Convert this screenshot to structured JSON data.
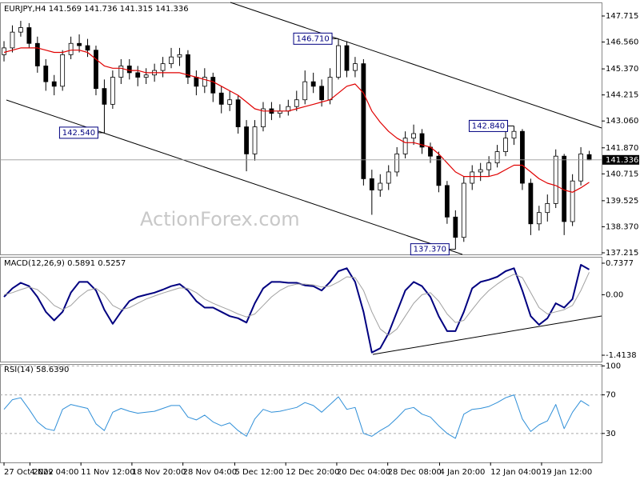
{
  "chart_data": [
    {
      "type": "candlestick",
      "title": "EURJPY,H4  141.569 141.736 141.315 141.336",
      "color": "#000000",
      "ohlc": [
        [
          146.0,
          146.6,
          145.7,
          146.3
        ],
        [
          146.3,
          147.3,
          146.1,
          147.0
        ],
        [
          147.0,
          147.5,
          146.8,
          147.2
        ],
        [
          147.2,
          147.4,
          146.3,
          146.5
        ],
        [
          146.5,
          146.8,
          145.2,
          145.5
        ],
        [
          145.5,
          145.8,
          144.4,
          144.8
        ],
        [
          144.8,
          145.1,
          144.2,
          144.6
        ],
        [
          144.6,
          146.2,
          144.4,
          146.0
        ],
        [
          146.0,
          146.8,
          145.8,
          146.5
        ],
        [
          146.5,
          146.9,
          146.1,
          146.4
        ],
        [
          146.4,
          146.7,
          145.9,
          146.2
        ],
        [
          146.2,
          146.4,
          144.2,
          144.5
        ],
        [
          144.5,
          144.9,
          142.54,
          143.8
        ],
        [
          143.8,
          145.3,
          143.6,
          145.0
        ],
        [
          145.0,
          145.8,
          144.7,
          145.5
        ],
        [
          145.5,
          145.8,
          144.9,
          145.2
        ],
        [
          145.2,
          145.5,
          144.6,
          145.0
        ],
        [
          145.0,
          145.4,
          144.7,
          145.1
        ],
        [
          145.1,
          145.6,
          144.8,
          145.3
        ],
        [
          145.3,
          145.9,
          145.0,
          145.6
        ],
        [
          145.6,
          146.3,
          145.4,
          145.9
        ],
        [
          145.9,
          146.3,
          145.5,
          146.0
        ],
        [
          146.0,
          146.2,
          144.7,
          145.0
        ],
        [
          145.0,
          145.3,
          144.2,
          144.6
        ],
        [
          144.6,
          145.4,
          144.3,
          145.0
        ],
        [
          145.0,
          145.2,
          143.9,
          144.3
        ],
        [
          144.3,
          144.6,
          143.4,
          143.8
        ],
        [
          143.8,
          144.4,
          143.5,
          144.0
        ],
        [
          144.0,
          144.2,
          142.5,
          142.8
        ],
        [
          142.8,
          143.1,
          140.83,
          141.6
        ],
        [
          141.6,
          143.1,
          141.3,
          142.8
        ],
        [
          142.8,
          143.9,
          142.6,
          143.6
        ],
        [
          143.6,
          143.9,
          143.1,
          143.4
        ],
        [
          143.4,
          143.8,
          143.2,
          143.5
        ],
        [
          143.5,
          144.0,
          143.3,
          143.7
        ],
        [
          143.7,
          144.4,
          143.5,
          144.0
        ],
        [
          144.0,
          145.3,
          143.8,
          144.8
        ],
        [
          144.8,
          145.2,
          144.3,
          144.6
        ],
        [
          144.6,
          144.9,
          143.7,
          144.0
        ],
        [
          144.0,
          145.4,
          143.8,
          145.0
        ],
        [
          145.0,
          146.71,
          144.9,
          146.4
        ],
        [
          146.4,
          146.6,
          145.0,
          145.3
        ],
        [
          145.3,
          145.9,
          145.0,
          145.6
        ],
        [
          145.6,
          145.8,
          140.2,
          140.5
        ],
        [
          140.5,
          140.9,
          138.9,
          140.0
        ],
        [
          140.0,
          140.7,
          139.7,
          140.3
        ],
        [
          140.3,
          141.1,
          140.0,
          140.8
        ],
        [
          140.8,
          141.9,
          140.6,
          141.6
        ],
        [
          141.6,
          142.6,
          141.4,
          142.3
        ],
        [
          142.3,
          142.9,
          142.0,
          142.5
        ],
        [
          142.5,
          142.7,
          141.6,
          141.9
        ],
        [
          141.9,
          142.1,
          141.2,
          141.5
        ],
        [
          141.5,
          141.7,
          139.9,
          140.2
        ],
        [
          140.2,
          140.4,
          138.5,
          138.8
        ],
        [
          138.8,
          139.1,
          137.37,
          137.9
        ],
        [
          137.9,
          140.6,
          137.7,
          140.3
        ],
        [
          140.3,
          141.1,
          140.0,
          140.8
        ],
        [
          140.8,
          141.2,
          140.4,
          140.9
        ],
        [
          140.9,
          141.5,
          140.6,
          141.2
        ],
        [
          141.2,
          142.0,
          141.0,
          141.7
        ],
        [
          141.7,
          142.6,
          141.5,
          142.3
        ],
        [
          142.3,
          142.84,
          142.0,
          142.6
        ],
        [
          142.6,
          142.7,
          140.0,
          140.3
        ],
        [
          140.3,
          140.5,
          138.0,
          138.5
        ],
        [
          138.5,
          139.3,
          138.2,
          139.0
        ],
        [
          139.0,
          139.8,
          138.6,
          139.4
        ],
        [
          139.4,
          141.8,
          139.2,
          141.5
        ],
        [
          141.5,
          141.6,
          138.0,
          138.6
        ],
        [
          138.6,
          140.7,
          138.4,
          140.4
        ],
        [
          140.4,
          141.9,
          140.2,
          141.6
        ],
        [
          141.569,
          141.736,
          141.315,
          141.336
        ]
      ],
      "overlay": {
        "color": "#e00000",
        "values": [
          146.1,
          146.2,
          146.3,
          146.3,
          146.3,
          146.2,
          146.1,
          146.1,
          146.2,
          146.2,
          146.1,
          145.8,
          145.5,
          145.4,
          145.4,
          145.3,
          145.3,
          145.2,
          145.2,
          145.2,
          145.2,
          145.2,
          145.1,
          145.0,
          144.9,
          144.8,
          144.6,
          144.4,
          144.2,
          143.9,
          143.6,
          143.5,
          143.5,
          143.5,
          143.5,
          143.6,
          143.7,
          143.8,
          143.9,
          144.0,
          144.3,
          144.6,
          144.7,
          144.3,
          143.5,
          143.0,
          142.6,
          142.3,
          142.1,
          142.1,
          142.0,
          141.9,
          141.6,
          141.2,
          140.8,
          140.6,
          140.6,
          140.6,
          140.6,
          140.7,
          140.9,
          141.1,
          141.1,
          140.8,
          140.5,
          140.3,
          140.2,
          140.0,
          139.9,
          140.1,
          140.34
        ]
      },
      "xlim": [
        -0.48,
        71.48
      ],
      "ylim": [
        137.144,
        148.318
      ],
      "yticks": [
        147.715,
        {
          "value": 146.56,
          "label": "146.560"
        },
        {
          "value": 145.37,
          "label": "145.370"
        },
        144.215,
        {
          "value": 143.06,
          "label": "143.060"
        },
        {
          "value": 141.87,
          "label": "141.870"
        },
        140.715,
        139.525,
        {
          "value": 138.37,
          "label": "138.370"
        },
        137.215
      ],
      "last_price": 141.336,
      "annotations": [
        {
          "value": 146.71,
          "label": "146.710",
          "x": 40
        },
        {
          "value": 142.54,
          "label": "142.540",
          "x": 12
        },
        {
          "value": 142.84,
          "label": "142.840",
          "x": 61
        },
        {
          "value": 137.37,
          "label": "137.370",
          "x": 54
        }
      ],
      "watermark": "ActionForex.com",
      "xticks": [
        {
          "value": 0,
          "label": "27 Oct 2022"
        },
        {
          "value": 3.1,
          "label": "4 Nov 04:00"
        },
        {
          "value": 9.2,
          "label": "11 Nov 12:00"
        },
        {
          "value": 15.3,
          "label": "18 Nov 20:00"
        },
        {
          "value": 21.4,
          "label": "28 Nov 04:00"
        },
        {
          "value": 27.6,
          "label": "5 Dec 12:00"
        },
        {
          "value": 33.7,
          "label": "12 Dec 20:00"
        },
        {
          "value": 39.8,
          "label": "20 Dec 04:00"
        },
        {
          "value": 45.9,
          "label": "28 Dec 08:00"
        },
        {
          "value": 52.1,
          "label": "4 Jan 20:00"
        },
        {
          "value": 58.2,
          "label": "12 Jan 04:00"
        },
        {
          "value": 64.3,
          "label": "19 Jan 12:00"
        }
      ]
    },
    {
      "type": "line",
      "title": "MACD(12,26,9) 0.5891 0.5257",
      "series": [
        {
          "color": "#000080",
          "values": [
            -0.05,
            0.15,
            0.28,
            0.2,
            -0.05,
            -0.4,
            -0.6,
            -0.4,
            0.05,
            0.3,
            0.3,
            0.1,
            -0.35,
            -0.68,
            -0.4,
            -0.15,
            -0.05,
            0.0,
            0.05,
            0.12,
            0.2,
            0.25,
            0.1,
            -0.15,
            -0.3,
            -0.3,
            -0.4,
            -0.5,
            -0.55,
            -0.65,
            -0.2,
            0.15,
            0.3,
            0.3,
            0.28,
            0.28,
            0.22,
            0.2,
            0.1,
            0.3,
            0.55,
            0.62,
            0.3,
            -0.4,
            -1.35,
            -1.25,
            -0.9,
            -0.4,
            0.1,
            0.3,
            0.2,
            -0.05,
            -0.5,
            -0.85,
            -0.85,
            -0.4,
            0.15,
            0.3,
            0.35,
            0.42,
            0.55,
            0.62,
            0.1,
            -0.5,
            -0.7,
            -0.55,
            -0.2,
            -0.3,
            -0.1,
            0.7,
            0.5891
          ]
        },
        {
          "color": "#a0a0a0",
          "values": [
            0.0,
            0.05,
            0.12,
            0.18,
            0.12,
            -0.05,
            -0.25,
            -0.35,
            -0.25,
            -0.05,
            0.1,
            0.15,
            0.0,
            -0.25,
            -0.35,
            -0.3,
            -0.2,
            -0.1,
            -0.03,
            0.04,
            0.1,
            0.16,
            0.15,
            0.05,
            -0.1,
            -0.2,
            -0.28,
            -0.36,
            -0.45,
            -0.52,
            -0.45,
            -0.25,
            -0.05,
            0.1,
            0.2,
            0.25,
            0.25,
            0.23,
            0.18,
            0.2,
            0.3,
            0.42,
            0.4,
            0.1,
            -0.4,
            -0.8,
            -0.95,
            -0.8,
            -0.5,
            -0.2,
            0.0,
            0.05,
            -0.15,
            -0.45,
            -0.65,
            -0.6,
            -0.35,
            -0.1,
            0.1,
            0.25,
            0.38,
            0.48,
            0.4,
            0.05,
            -0.3,
            -0.45,
            -0.4,
            -0.35,
            -0.25,
            0.1,
            0.5257
          ]
        }
      ],
      "ylim": [
        -1.563,
        0.887
      ],
      "yticks": [
        0.7377,
        {
          "value": 0,
          "label": "0.00"
        },
        -1.4138
      ]
    },
    {
      "type": "line",
      "title": "RSI(14) 58.6390",
      "series": [
        {
          "color": "#2f8fd8",
          "values": [
            55,
            65,
            67,
            55,
            42,
            35,
            33,
            55,
            60,
            58,
            56,
            40,
            33,
            52,
            56,
            53,
            51,
            52,
            53,
            56,
            59,
            59,
            47,
            44,
            49,
            42,
            38,
            41,
            33,
            27,
            45,
            55,
            52,
            53,
            55,
            57,
            62,
            59,
            52,
            60,
            68,
            55,
            57,
            30,
            27,
            33,
            38,
            46,
            55,
            57,
            50,
            47,
            38,
            30,
            25,
            50,
            55,
            56,
            58,
            62,
            67,
            70,
            45,
            32,
            39,
            43,
            60,
            35,
            52,
            64,
            58.639
          ]
        }
      ],
      "ylim": [
        0,
        102
      ],
      "yticks": [
        100,
        70,
        30
      ],
      "grid": true
    }
  ]
}
